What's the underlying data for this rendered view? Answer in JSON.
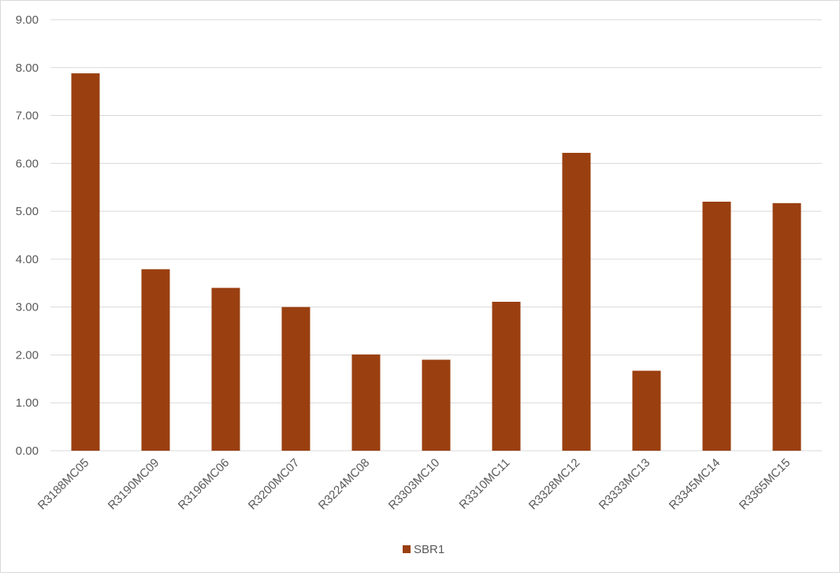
{
  "chart_data": {
    "type": "bar",
    "title": "",
    "xlabel": "",
    "ylabel": "",
    "categories": [
      "R3188MC05",
      "R3190MC09",
      "R3196MC06",
      "R3200MC07",
      "R3224MC08",
      "R3303MC10",
      "R3310MC11",
      "R3328MC12",
      "R3333MC13",
      "R3345MC14",
      "R3365MC15"
    ],
    "series": [
      {
        "name": "SBR1",
        "color": "#9A3F10",
        "values": [
          7.88,
          3.79,
          3.4,
          3.0,
          2.01,
          1.9,
          3.11,
          6.22,
          1.67,
          5.2,
          5.17
        ]
      }
    ],
    "ylim": [
      0,
      9
    ],
    "yticks": [
      "0.00",
      "1.00",
      "2.00",
      "3.00",
      "4.00",
      "5.00",
      "6.00",
      "7.00",
      "8.00",
      "9.00"
    ],
    "grid": true,
    "legend_position": "bottom-center",
    "gridline_color": "#d9d9d9",
    "axis_text_color": "#595959"
  }
}
